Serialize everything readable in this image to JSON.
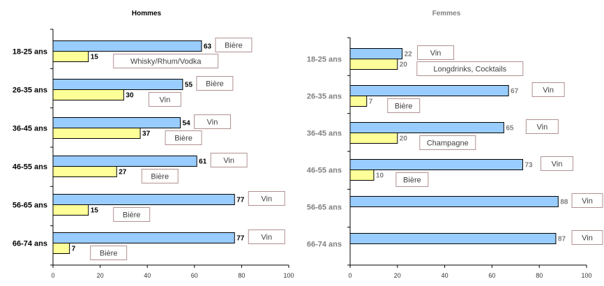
{
  "chart_data": [
    {
      "type": "bar",
      "orientation": "horizontal",
      "title": "Hommes",
      "categories": [
        "18-25 ans",
        "26-35 ans",
        "36-45 ans",
        "46-55 ans",
        "56-65 ans",
        "66-74 ans"
      ],
      "xlim": [
        0,
        100
      ],
      "xticks": [
        0,
        20,
        40,
        60,
        80,
        100
      ],
      "grid": false,
      "series": [
        {
          "values": [
            63,
            55,
            54,
            61,
            77,
            77
          ],
          "labels": [
            "Bière",
            "Bière",
            "Vin",
            "Vin",
            "Vin",
            "Vin"
          ],
          "color": "#99ccff"
        },
        {
          "values": [
            15,
            30,
            37,
            27,
            15,
            7
          ],
          "labels": [
            "Whisky/Rhum/Vodka",
            "Vin",
            "Bière",
            "Bière",
            "Bière",
            "Bière"
          ],
          "color": "#ffff99"
        }
      ]
    },
    {
      "type": "bar",
      "orientation": "horizontal",
      "title": "Femmes",
      "categories": [
        "18-25 ans",
        "26-35 ans",
        "36-45 ans",
        "46-55 ans",
        "56-65 ans",
        "66-74 ans"
      ],
      "xlim": [
        0,
        100
      ],
      "xticks": [
        0,
        20,
        40,
        60,
        80,
        100
      ],
      "grid": false,
      "series": [
        {
          "values": [
            22,
            67,
            65,
            73,
            88,
            87
          ],
          "labels": [
            "Vin",
            "Vin",
            "Vin",
            "Vin",
            "Vin",
            "Vin"
          ],
          "color": "#99ccff"
        },
        {
          "values": [
            20,
            7,
            20,
            10,
            null,
            null
          ],
          "labels": [
            "Longdrinks, Cocktails",
            "Bière",
            "Champagne",
            "Bière",
            null,
            null
          ],
          "color": "#ffff99"
        }
      ]
    }
  ]
}
